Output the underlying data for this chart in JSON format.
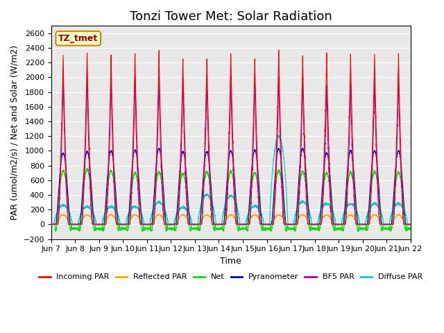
{
  "title": "Tonzi Tower Met: Solar Radiation",
  "ylabel": "PAR (umol/m2/s) / Net and Solar (W/m2)",
  "xlabel": "Time",
  "annotation": "TZ_tmet",
  "ylim": [
    -200,
    2700
  ],
  "yticks": [
    -200,
    0,
    200,
    400,
    600,
    800,
    1000,
    1200,
    1400,
    1600,
    1800,
    2000,
    2200,
    2400,
    2600
  ],
  "xtick_labels": [
    "Jun 7",
    "Jun 8",
    "Jun 9",
    "Jun 10",
    "Jun 11",
    "Jun 12",
    "Jun 13",
    "Jun 14",
    "Jun 15",
    "Jun 16",
    "Jun 17",
    "Jun 18",
    "Jun 19",
    "Jun 20",
    "Jun 21",
    "Jun 22"
  ],
  "num_days": 15,
  "background_color": "#e8e8e8",
  "series_colors": {
    "incoming_par": "#ff0000",
    "reflected_par": "#ffa500",
    "net": "#00dd00",
    "pyranometer": "#0000cc",
    "bf5_par": "#aa00aa",
    "diffuse_par": "#00cccc"
  },
  "legend_labels": [
    "Incoming PAR",
    "Reflected PAR",
    "Net",
    "Pyranometer",
    "BF5 PAR",
    "Diffuse PAR"
  ],
  "legend_colors": [
    "#ff0000",
    "#ffa500",
    "#00dd00",
    "#0000cc",
    "#aa00aa",
    "#00cccc"
  ],
  "title_fontsize": 13,
  "axis_fontsize": 9,
  "tick_fontsize": 8,
  "n_points_per_day": 288,
  "incoming_peaks": [
    2300,
    2350,
    2320,
    2330,
    2380,
    2280,
    2300,
    2360,
    2300,
    2420,
    2300,
    2350,
    2340,
    2330,
    2320
  ],
  "bf5_peaks": [
    2100,
    2080,
    2070,
    2060,
    2060,
    2050,
    2050,
    2070,
    2050,
    2090,
    2070,
    1950,
    1970,
    2070,
    2080
  ],
  "pyrano_peaks": [
    970,
    990,
    1000,
    1010,
    1030,
    990,
    990,
    1000,
    1010,
    1030,
    1030,
    970,
    1000,
    1000,
    1000
  ],
  "reflected_peaks": [
    130,
    130,
    130,
    130,
    130,
    130,
    130,
    130,
    130,
    130,
    130,
    130,
    130,
    130,
    130
  ],
  "net_peaks": [
    730,
    750,
    730,
    700,
    710,
    690,
    710,
    720,
    700,
    730,
    720,
    700,
    710,
    720,
    710
  ],
  "diffuse_peaks": [
    260,
    240,
    240,
    240,
    300,
    230,
    400,
    390,
    250,
    1200,
    310,
    280,
    280,
    280,
    280
  ]
}
